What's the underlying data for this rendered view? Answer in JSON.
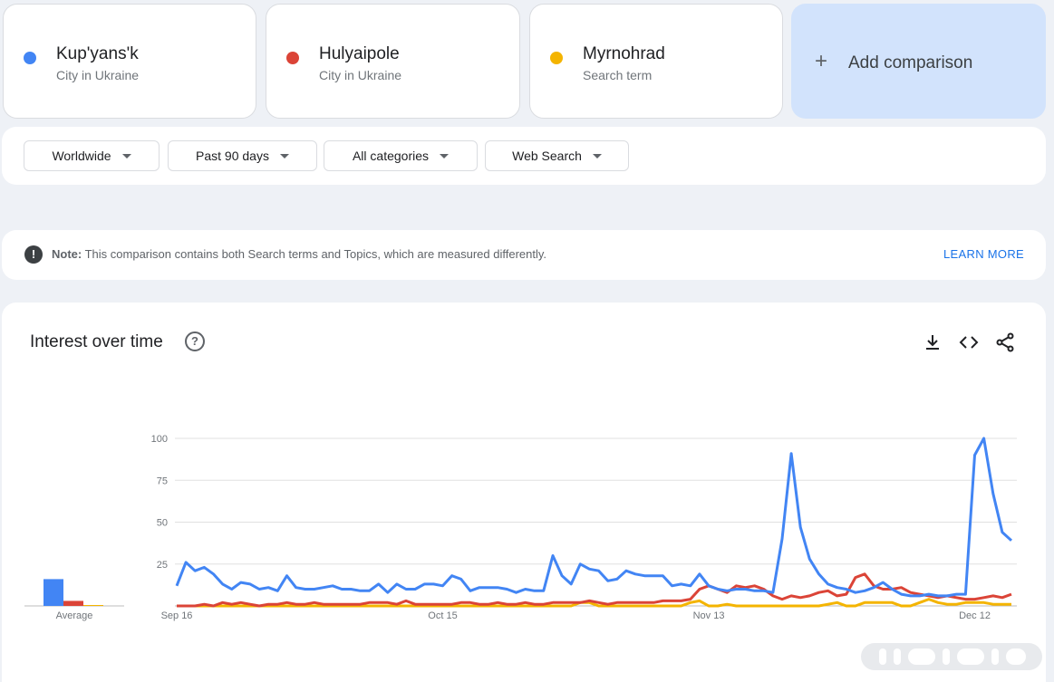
{
  "terms": [
    {
      "name": "Kup'yans'k",
      "sub": "City in Ukraine",
      "color": "#4285f4"
    },
    {
      "name": "Hulyaipole",
      "sub": "City in Ukraine",
      "color": "#db4437"
    },
    {
      "name": "Myrnohrad",
      "sub": "Search term",
      "color": "#f4b400"
    }
  ],
  "add_comparison": {
    "label": "Add comparison",
    "icon": "plus-icon"
  },
  "filters": {
    "region": "Worldwide",
    "time": "Past 90 days",
    "category": "All categories",
    "property": "Web Search"
  },
  "note": {
    "bold": "Note:",
    "text": "This comparison contains both Search terms and Topics, which are measured differently.",
    "link": "LEARN MORE"
  },
  "chart_header": {
    "title": "Interest over time",
    "icons": [
      "help-icon",
      "download-icon",
      "embed-icon",
      "share-icon"
    ]
  },
  "chart_data": {
    "type": "line",
    "title": "Interest over time",
    "ylim": [
      0,
      100
    ],
    "y_ticks": [
      "100",
      "75",
      "50",
      "25"
    ],
    "x_tick_labels": [
      {
        "label": "Sep 16",
        "index": 0
      },
      {
        "label": "Oct 15",
        "index": 29
      },
      {
        "label": "Nov 13",
        "index": 58
      },
      {
        "label": "Dec 12",
        "index": 87
      }
    ],
    "average_label": "Average",
    "averages": [
      16,
      3,
      0.5
    ],
    "grid": true,
    "series": [
      {
        "name": "Kup'yans'k",
        "color": "#4285f4",
        "values": [
          12,
          26,
          21,
          23,
          19,
          13,
          10,
          14,
          13,
          10,
          11,
          9,
          18,
          11,
          10,
          10,
          11,
          12,
          10,
          10,
          9,
          9,
          13,
          8,
          13,
          10,
          10,
          13,
          13,
          12,
          18,
          16,
          9,
          11,
          11,
          11,
          10,
          8,
          10,
          9,
          9,
          30,
          18,
          13,
          25,
          22,
          21,
          15,
          16,
          21,
          19,
          18,
          18,
          18,
          12,
          13,
          12,
          19,
          12,
          10,
          9,
          10,
          10,
          9,
          9,
          8,
          40,
          91,
          47,
          28,
          19,
          13,
          11,
          10,
          8,
          9,
          11,
          14,
          10,
          7,
          6,
          6,
          7,
          6,
          6,
          7,
          7,
          90,
          100,
          67,
          44,
          39
        ]
      },
      {
        "name": "Hulyaipole",
        "color": "#db4437",
        "values": [
          0,
          0,
          0,
          1,
          0,
          2,
          1,
          2,
          1,
          0,
          1,
          1,
          2,
          1,
          1,
          2,
          1,
          1,
          1,
          1,
          1,
          2,
          2,
          2,
          1,
          3,
          1,
          1,
          1,
          1,
          1,
          2,
          2,
          1,
          1,
          2,
          1,
          1,
          2,
          1,
          1,
          2,
          2,
          2,
          2,
          3,
          2,
          1,
          2,
          2,
          2,
          2,
          2,
          3,
          3,
          3,
          4,
          10,
          12,
          10,
          8,
          12,
          11,
          12,
          10,
          6,
          4,
          6,
          5,
          6,
          8,
          9,
          6,
          7,
          17,
          19,
          12,
          10,
          10,
          11,
          8,
          7,
          6,
          5,
          6,
          5,
          4,
          4,
          5,
          6,
          5,
          7
        ]
      },
      {
        "name": "Myrnohrad",
        "color": "#f4b400",
        "values": [
          0,
          0,
          0,
          0,
          0,
          0,
          0,
          0,
          0,
          0,
          0,
          0,
          0,
          0,
          0,
          0,
          0,
          0,
          0,
          0,
          0,
          0,
          0,
          0,
          0,
          0,
          0,
          0,
          0,
          0,
          0,
          0,
          0,
          0,
          0,
          0,
          0,
          0,
          0,
          0,
          0,
          0,
          0,
          0,
          2,
          2,
          0,
          0,
          0,
          0,
          0,
          0,
          0,
          0,
          0,
          0,
          2,
          3,
          0,
          0,
          1,
          0,
          0,
          0,
          0,
          0,
          0,
          0,
          0,
          0,
          0,
          1,
          2,
          0,
          0,
          2,
          2,
          2,
          2,
          0,
          0,
          2,
          4,
          2,
          1,
          1,
          2,
          2,
          2,
          1,
          1,
          1
        ]
      }
    ]
  }
}
